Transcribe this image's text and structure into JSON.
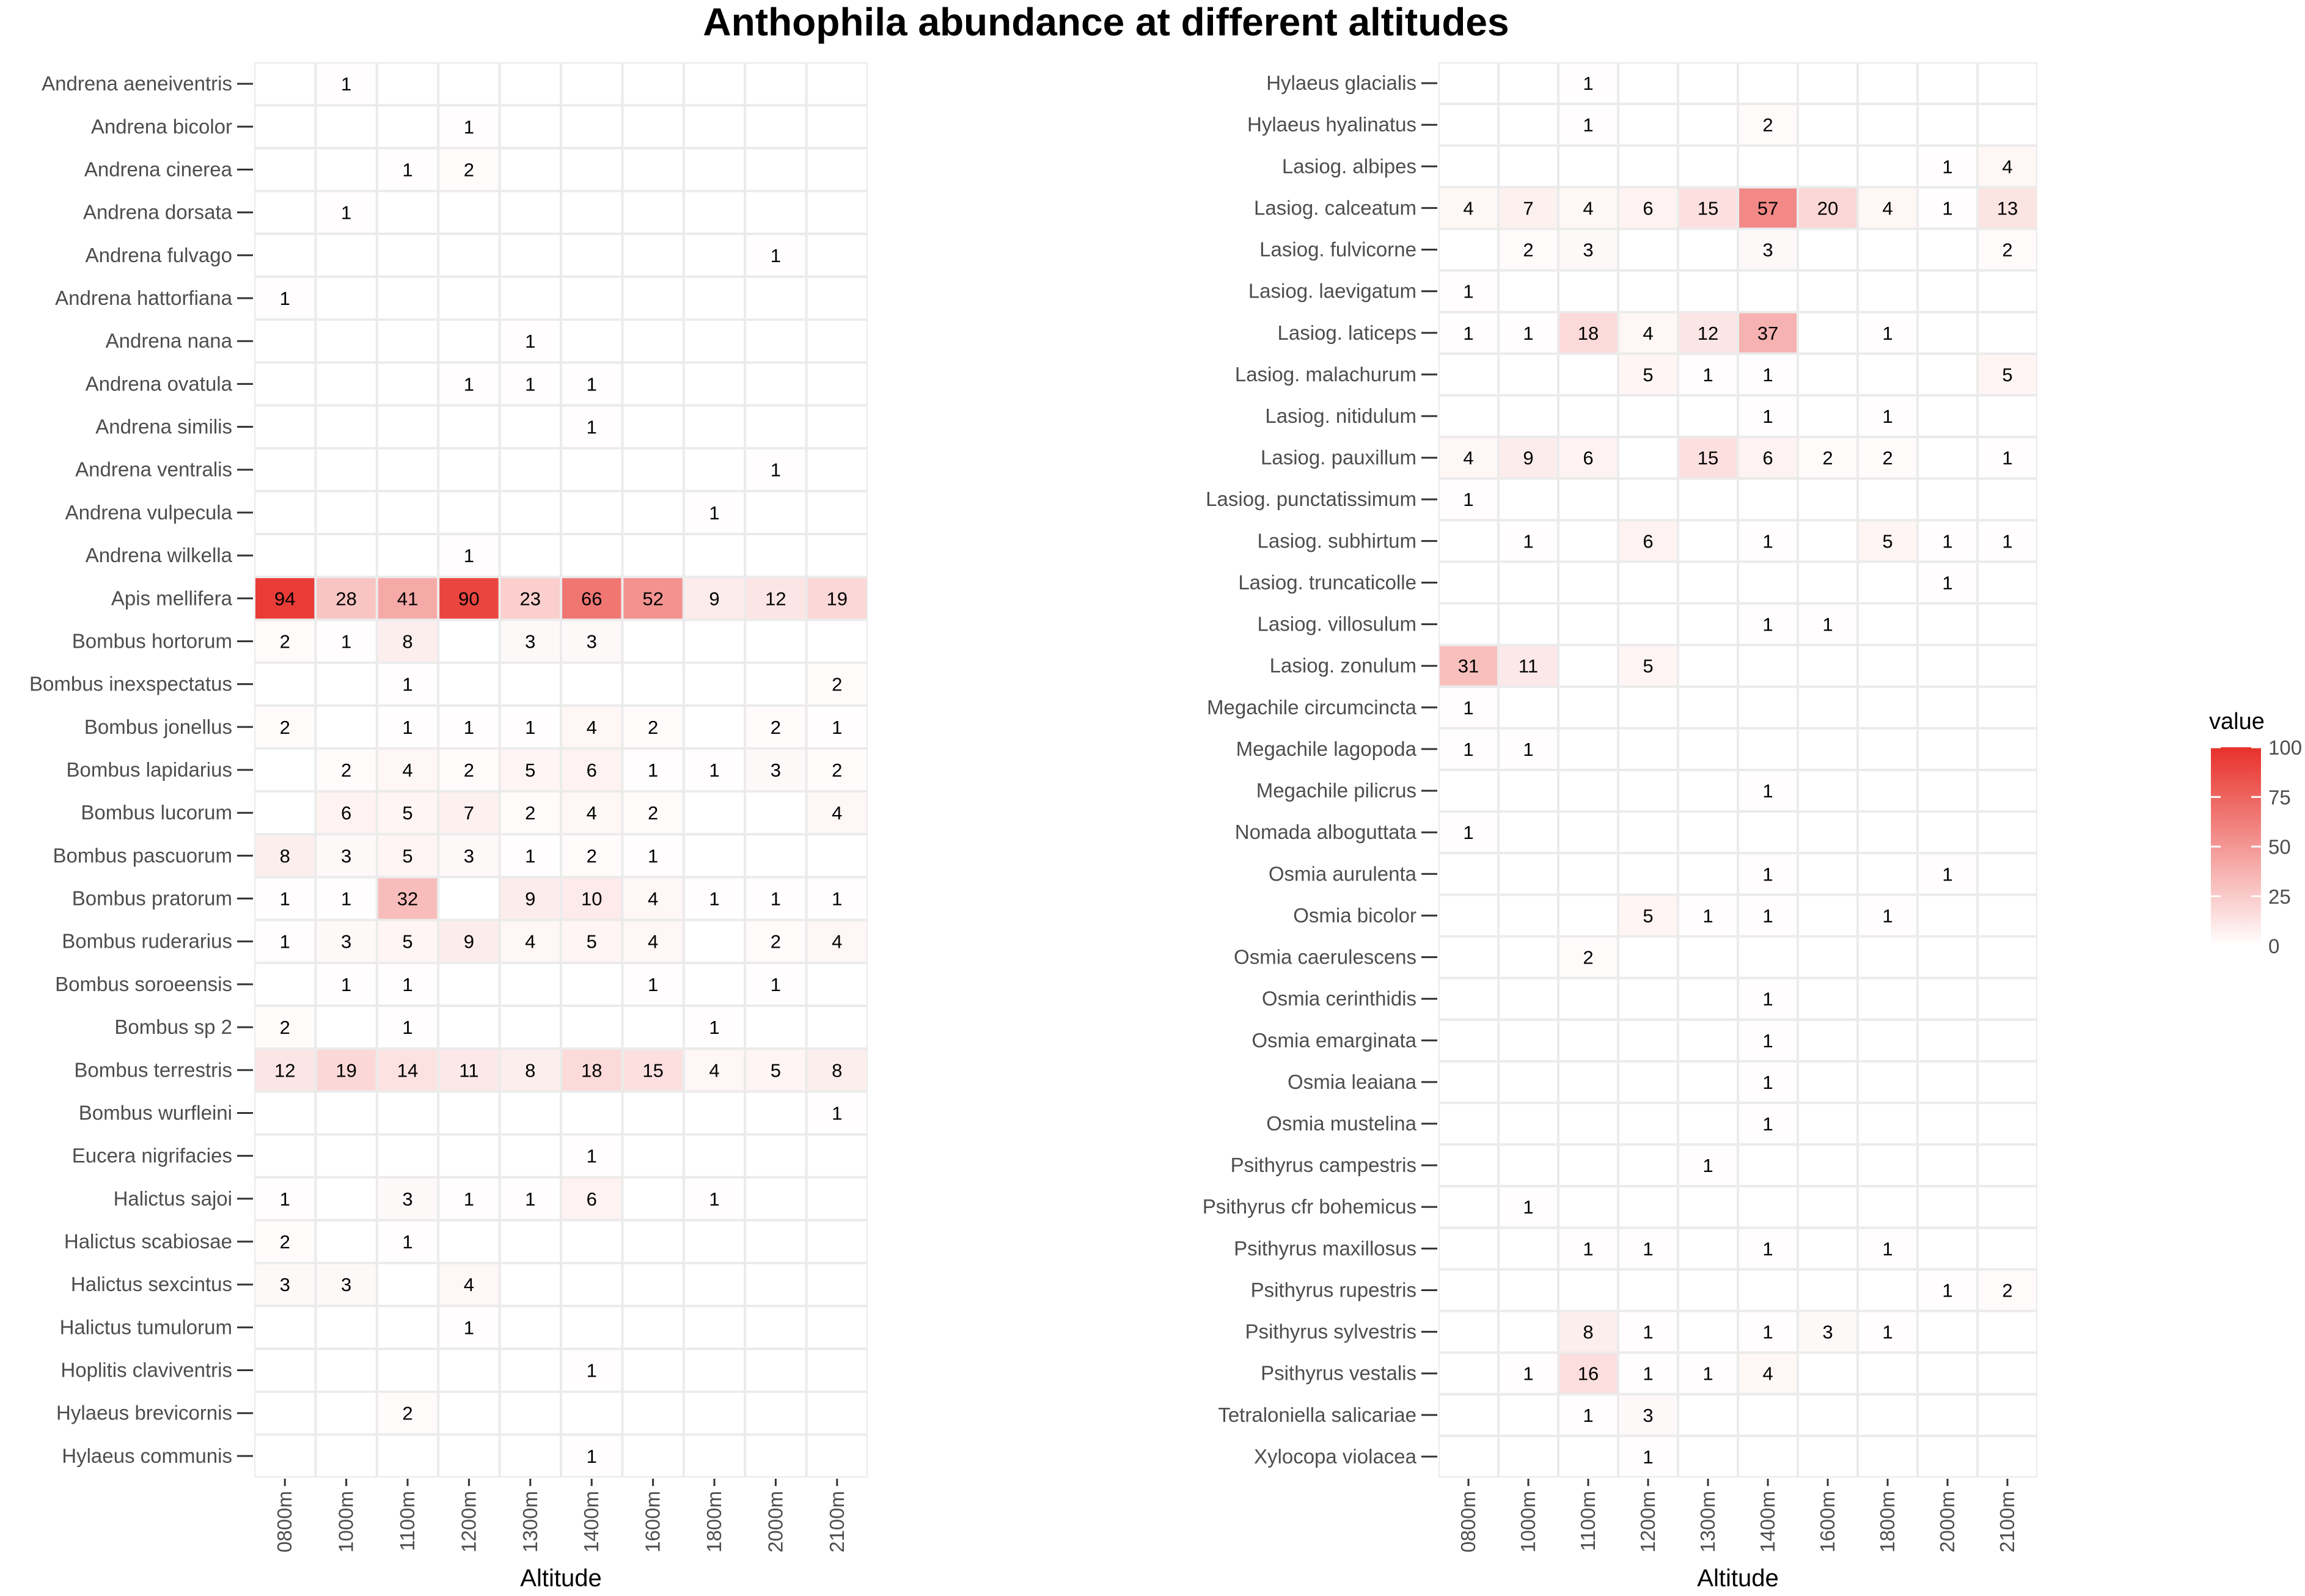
{
  "title": "Anthophila abundance at different altitudes",
  "legend": {
    "title": "value",
    "breaks": [
      100,
      75,
      50,
      25,
      0
    ],
    "color_low": "#ffffff",
    "color_high": "#e8302a"
  },
  "chart_data": [
    {
      "type": "heatmap",
      "xlabel": "Altitude",
      "ylabel": "",
      "x": [
        "0800m",
        "1000m",
        "1100m",
        "1200m",
        "1300m",
        "1400m",
        "1600m",
        "1800m",
        "2000m",
        "2100m"
      ],
      "value_range": [
        0,
        100
      ],
      "rows": [
        {
          "species": "Andrena aeneiventris",
          "values": [
            null,
            1,
            null,
            null,
            null,
            null,
            null,
            null,
            null,
            null
          ]
        },
        {
          "species": "Andrena bicolor",
          "values": [
            null,
            null,
            null,
            1,
            null,
            null,
            null,
            null,
            null,
            null
          ]
        },
        {
          "species": "Andrena cinerea",
          "values": [
            null,
            null,
            1,
            2,
            null,
            null,
            null,
            null,
            null,
            null
          ]
        },
        {
          "species": "Andrena dorsata",
          "values": [
            null,
            1,
            null,
            null,
            null,
            null,
            null,
            null,
            null,
            null
          ]
        },
        {
          "species": "Andrena fulvago",
          "values": [
            null,
            null,
            null,
            null,
            null,
            null,
            null,
            null,
            1,
            null
          ]
        },
        {
          "species": "Andrena hattorfiana",
          "values": [
            1,
            null,
            null,
            null,
            null,
            null,
            null,
            null,
            null,
            null
          ]
        },
        {
          "species": "Andrena nana",
          "values": [
            null,
            null,
            null,
            null,
            1,
            null,
            null,
            null,
            null,
            null
          ]
        },
        {
          "species": "Andrena ovatula",
          "values": [
            null,
            null,
            null,
            1,
            1,
            1,
            null,
            null,
            null,
            null
          ]
        },
        {
          "species": "Andrena similis",
          "values": [
            null,
            null,
            null,
            null,
            null,
            1,
            null,
            null,
            null,
            null
          ]
        },
        {
          "species": "Andrena ventralis",
          "values": [
            null,
            null,
            null,
            null,
            null,
            null,
            null,
            null,
            1,
            null
          ]
        },
        {
          "species": "Andrena vulpecula",
          "values": [
            null,
            null,
            null,
            null,
            null,
            null,
            null,
            1,
            null,
            null
          ]
        },
        {
          "species": "Andrena wilkella",
          "values": [
            null,
            null,
            null,
            1,
            null,
            null,
            null,
            null,
            null,
            null
          ]
        },
        {
          "species": "Apis mellifera",
          "values": [
            94,
            28,
            41,
            90,
            23,
            66,
            52,
            9,
            12,
            19
          ]
        },
        {
          "species": "Bombus hortorum",
          "values": [
            2,
            1,
            8,
            null,
            3,
            3,
            null,
            null,
            null,
            null
          ]
        },
        {
          "species": "Bombus inexspectatus",
          "values": [
            null,
            null,
            1,
            null,
            null,
            null,
            null,
            null,
            null,
            2
          ]
        },
        {
          "species": "Bombus jonellus",
          "values": [
            2,
            null,
            1,
            1,
            1,
            4,
            2,
            null,
            2,
            1
          ]
        },
        {
          "species": "Bombus lapidarius",
          "values": [
            null,
            2,
            4,
            2,
            5,
            6,
            1,
            1,
            3,
            2
          ]
        },
        {
          "species": "Bombus lucorum",
          "values": [
            null,
            6,
            5,
            7,
            2,
            4,
            2,
            null,
            null,
            4
          ]
        },
        {
          "species": "Bombus pascuorum",
          "values": [
            8,
            3,
            5,
            3,
            1,
            2,
            1,
            null,
            null,
            null
          ]
        },
        {
          "species": "Bombus pratorum",
          "values": [
            1,
            1,
            32,
            null,
            9,
            10,
            4,
            1,
            1,
            1
          ]
        },
        {
          "species": "Bombus ruderarius",
          "values": [
            1,
            3,
            5,
            9,
            4,
            5,
            4,
            null,
            2,
            4
          ]
        },
        {
          "species": "Bombus soroeensis",
          "values": [
            null,
            1,
            1,
            null,
            null,
            null,
            1,
            null,
            1,
            null
          ]
        },
        {
          "species": "Bombus sp 2",
          "values": [
            2,
            null,
            1,
            null,
            null,
            null,
            null,
            1,
            null,
            null
          ]
        },
        {
          "species": "Bombus terrestris",
          "values": [
            12,
            19,
            14,
            11,
            8,
            18,
            15,
            4,
            5,
            8
          ]
        },
        {
          "species": "Bombus wurfleini",
          "values": [
            null,
            null,
            null,
            null,
            null,
            null,
            null,
            null,
            null,
            1
          ]
        },
        {
          "species": "Eucera nigrifacies",
          "values": [
            null,
            null,
            null,
            null,
            null,
            1,
            null,
            null,
            null,
            null
          ]
        },
        {
          "species": "Halictus sajoi",
          "values": [
            1,
            null,
            3,
            1,
            1,
            6,
            null,
            1,
            null,
            null
          ]
        },
        {
          "species": "Halictus scabiosae",
          "values": [
            2,
            null,
            1,
            null,
            null,
            null,
            null,
            null,
            null,
            null
          ]
        },
        {
          "species": "Halictus sexcintus",
          "values": [
            3,
            3,
            null,
            4,
            null,
            null,
            null,
            null,
            null,
            null
          ]
        },
        {
          "species": "Halictus tumulorum",
          "values": [
            null,
            null,
            null,
            1,
            null,
            null,
            null,
            null,
            null,
            null
          ]
        },
        {
          "species": "Hoplitis claviventris",
          "values": [
            null,
            null,
            null,
            null,
            null,
            1,
            null,
            null,
            null,
            null
          ]
        },
        {
          "species": "Hylaeus brevicornis",
          "values": [
            null,
            null,
            2,
            null,
            null,
            null,
            null,
            null,
            null,
            null
          ]
        },
        {
          "species": "Hylaeus communis",
          "values": [
            null,
            null,
            null,
            null,
            null,
            1,
            null,
            null,
            null,
            null
          ]
        }
      ]
    },
    {
      "type": "heatmap",
      "xlabel": "Altitude",
      "ylabel": "",
      "x": [
        "0800m",
        "1000m",
        "1100m",
        "1200m",
        "1300m",
        "1400m",
        "1600m",
        "1800m",
        "2000m",
        "2100m"
      ],
      "value_range": [
        0,
        100
      ],
      "rows": [
        {
          "species": "Hylaeus glacialis",
          "values": [
            null,
            null,
            1,
            null,
            null,
            null,
            null,
            null,
            null,
            null
          ]
        },
        {
          "species": "Hylaeus hyalinatus",
          "values": [
            null,
            null,
            1,
            null,
            null,
            2,
            null,
            null,
            null,
            null
          ]
        },
        {
          "species": "Lasiog. albipes",
          "values": [
            null,
            null,
            null,
            null,
            null,
            null,
            null,
            null,
            1,
            4
          ]
        },
        {
          "species": "Lasiog. calceatum",
          "values": [
            4,
            7,
            4,
            6,
            15,
            57,
            20,
            4,
            1,
            13
          ]
        },
        {
          "species": "Lasiog. fulvicorne",
          "values": [
            null,
            2,
            3,
            null,
            null,
            3,
            null,
            null,
            null,
            2
          ]
        },
        {
          "species": "Lasiog. laevigatum",
          "values": [
            1,
            null,
            null,
            null,
            null,
            null,
            null,
            null,
            null,
            null
          ]
        },
        {
          "species": "Lasiog. laticeps",
          "values": [
            1,
            1,
            18,
            4,
            12,
            37,
            null,
            1,
            null,
            null
          ]
        },
        {
          "species": "Lasiog. malachurum",
          "values": [
            null,
            null,
            null,
            5,
            1,
            1,
            null,
            null,
            null,
            5
          ]
        },
        {
          "species": "Lasiog. nitidulum",
          "values": [
            null,
            null,
            null,
            null,
            null,
            1,
            null,
            1,
            null,
            null
          ]
        },
        {
          "species": "Lasiog. pauxillum",
          "values": [
            4,
            9,
            6,
            null,
            15,
            6,
            2,
            2,
            null,
            1
          ]
        },
        {
          "species": "Lasiog. punctatissimum",
          "values": [
            1,
            null,
            null,
            null,
            null,
            null,
            null,
            null,
            null,
            null
          ]
        },
        {
          "species": "Lasiog. subhirtum",
          "values": [
            null,
            1,
            null,
            6,
            null,
            1,
            null,
            5,
            1,
            1
          ]
        },
        {
          "species": "Lasiog. truncaticolle",
          "values": [
            null,
            null,
            null,
            null,
            null,
            null,
            null,
            null,
            1,
            null
          ]
        },
        {
          "species": "Lasiog. villosulum",
          "values": [
            null,
            null,
            null,
            null,
            null,
            1,
            1,
            null,
            null,
            null
          ]
        },
        {
          "species": "Lasiog. zonulum",
          "values": [
            31,
            11,
            null,
            5,
            null,
            null,
            null,
            null,
            null,
            null
          ]
        },
        {
          "species": "Megachile circumcincta",
          "values": [
            1,
            null,
            null,
            null,
            null,
            null,
            null,
            null,
            null,
            null
          ]
        },
        {
          "species": "Megachile lagopoda",
          "values": [
            1,
            1,
            null,
            null,
            null,
            null,
            null,
            null,
            null,
            null
          ]
        },
        {
          "species": "Megachile pilicrus",
          "values": [
            null,
            null,
            null,
            null,
            null,
            1,
            null,
            null,
            null,
            null
          ]
        },
        {
          "species": "Nomada alboguttata",
          "values": [
            1,
            null,
            null,
            null,
            null,
            null,
            null,
            null,
            null,
            null
          ]
        },
        {
          "species": "Osmia aurulenta",
          "values": [
            null,
            null,
            null,
            null,
            null,
            1,
            null,
            null,
            1,
            null
          ]
        },
        {
          "species": "Osmia bicolor",
          "values": [
            null,
            null,
            null,
            5,
            1,
            1,
            null,
            1,
            null,
            null
          ]
        },
        {
          "species": "Osmia caerulescens",
          "values": [
            null,
            null,
            2,
            null,
            null,
            null,
            null,
            null,
            null,
            null
          ]
        },
        {
          "species": "Osmia cerinthidis",
          "values": [
            null,
            null,
            null,
            null,
            null,
            1,
            null,
            null,
            null,
            null
          ]
        },
        {
          "species": "Osmia emarginata",
          "values": [
            null,
            null,
            null,
            null,
            null,
            1,
            null,
            null,
            null,
            null
          ]
        },
        {
          "species": "Osmia leaiana",
          "values": [
            null,
            null,
            null,
            null,
            null,
            1,
            null,
            null,
            null,
            null
          ]
        },
        {
          "species": "Osmia mustelina",
          "values": [
            null,
            null,
            null,
            null,
            null,
            1,
            null,
            null,
            null,
            null
          ]
        },
        {
          "species": "Psithyrus campestris",
          "values": [
            null,
            null,
            null,
            null,
            1,
            null,
            null,
            null,
            null,
            null
          ]
        },
        {
          "species": "Psithyrus cfr bohemicus",
          "values": [
            null,
            1,
            null,
            null,
            null,
            null,
            null,
            null,
            null,
            null
          ]
        },
        {
          "species": "Psithyrus maxillosus",
          "values": [
            null,
            null,
            1,
            1,
            null,
            1,
            null,
            1,
            null,
            null
          ]
        },
        {
          "species": "Psithyrus rupestris",
          "values": [
            null,
            null,
            null,
            null,
            null,
            null,
            null,
            null,
            1,
            2
          ]
        },
        {
          "species": "Psithyrus sylvestris",
          "values": [
            null,
            null,
            8,
            1,
            null,
            1,
            3,
            1,
            null,
            null
          ]
        },
        {
          "species": "Psithyrus vestalis",
          "values": [
            null,
            1,
            16,
            1,
            1,
            4,
            null,
            null,
            null,
            null
          ]
        },
        {
          "species": "Tetraloniella salicariae",
          "values": [
            null,
            null,
            1,
            3,
            null,
            null,
            null,
            null,
            null,
            null
          ]
        },
        {
          "species": "Xylocopa violacea",
          "values": [
            null,
            null,
            null,
            1,
            null,
            null,
            null,
            null,
            null,
            null
          ]
        }
      ]
    }
  ]
}
